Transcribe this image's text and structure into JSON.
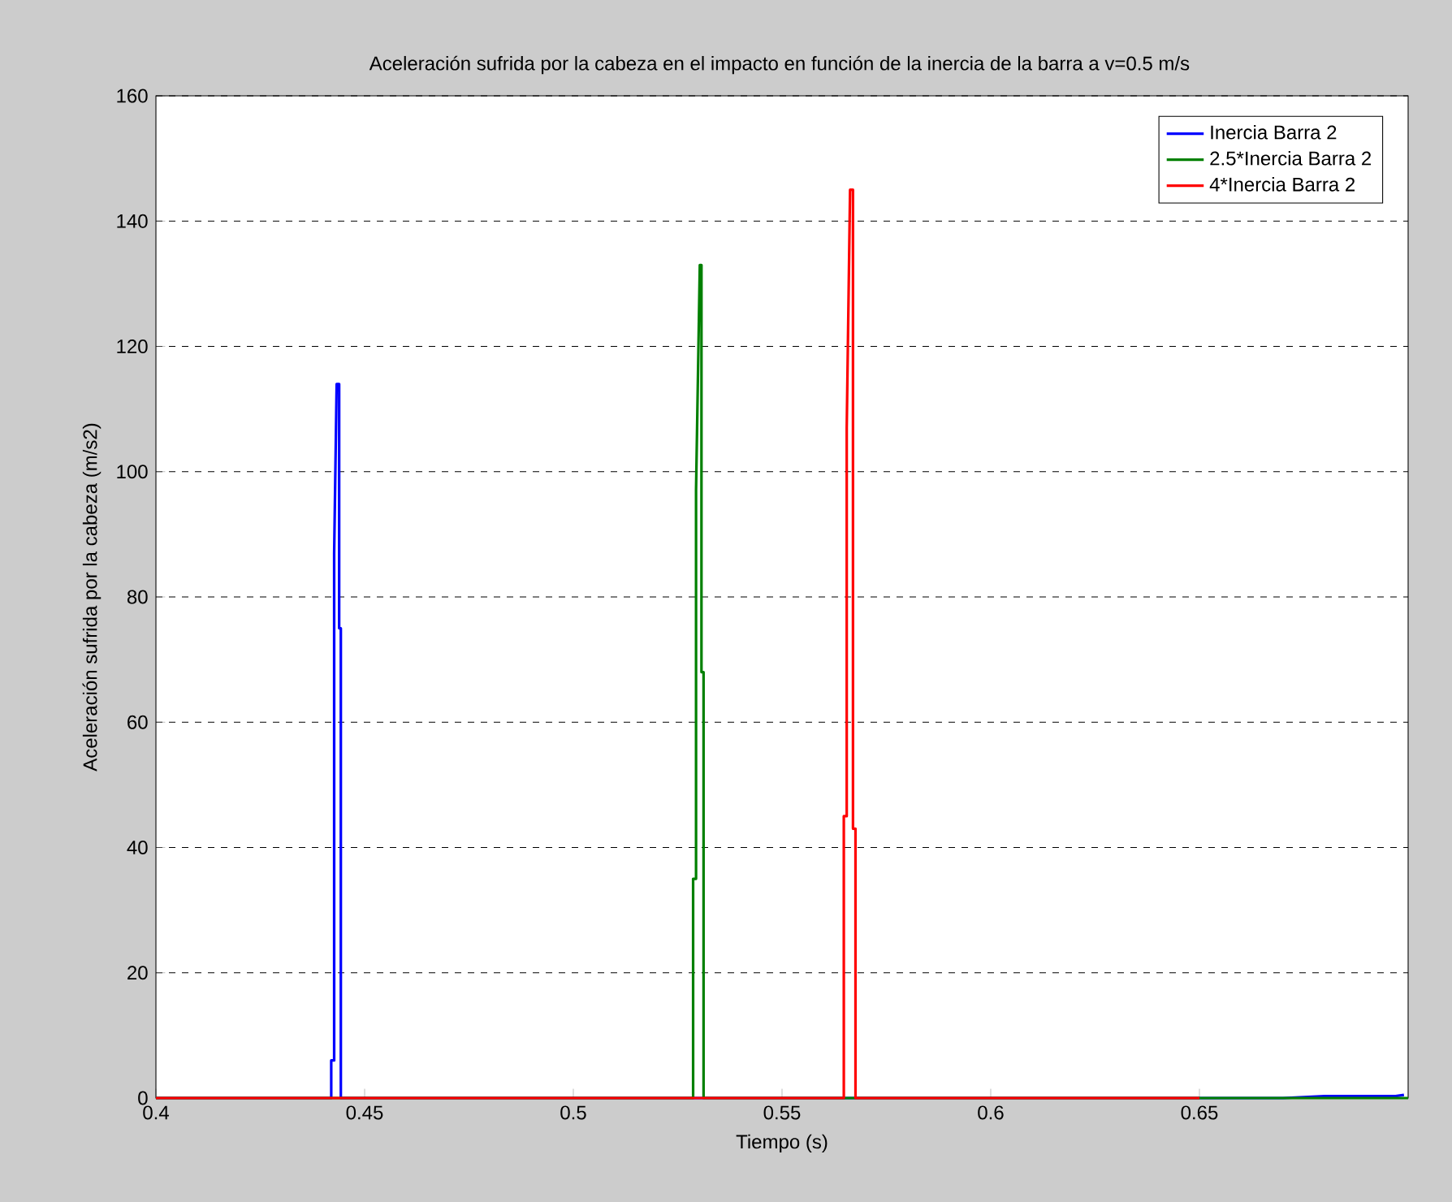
{
  "chart_data": {
    "type": "line",
    "title": "Aceleración sufrida por la cabeza en el impacto en función de la inercia de la barra a v=0.5 m/s",
    "xlabel": "Tiempo (s)",
    "ylabel": "Aceleración sufrida por la cabeza (m/s2)",
    "xlim": [
      0.4,
      0.7
    ],
    "ylim": [
      0,
      160
    ],
    "xticks": [
      0.4,
      0.45,
      0.5,
      0.55,
      0.6,
      0.65
    ],
    "yticks": [
      0,
      20,
      40,
      60,
      80,
      100,
      120,
      140,
      160
    ],
    "grid": "y",
    "legend": "top right",
    "line_style": "solid",
    "series": [
      {
        "name": "Inercia Barra 2",
        "color": "#0000ff",
        "x": [
          0.4,
          0.442,
          0.442,
          0.4427,
          0.4427,
          0.4433,
          0.4439,
          0.4439,
          0.4443,
          0.4443,
          0.67,
          0.68,
          0.697,
          0.699
        ],
        "values": [
          0,
          0,
          6,
          6,
          87,
          114,
          114,
          75,
          75,
          0,
          0,
          0.3,
          0.3,
          0.5
        ]
      },
      {
        "name": "2.5*Inercia Barra 2",
        "color": "#008000",
        "x": [
          0.4,
          0.5287,
          0.5287,
          0.5294,
          0.5294,
          0.5303,
          0.5307,
          0.5307,
          0.5312,
          0.5312,
          0.7
        ],
        "values": [
          0,
          0,
          35,
          35,
          97,
          133,
          133,
          68,
          68,
          0,
          0
        ]
      },
      {
        "name": "4*Inercia Barra 2",
        "color": "#ff0000",
        "x": [
          0.4,
          0.5648,
          0.5648,
          0.5655,
          0.5655,
          0.5663,
          0.567,
          0.567,
          0.5676,
          0.5676,
          0.65
        ],
        "values": [
          0,
          0,
          45,
          45,
          107,
          145,
          145,
          43,
          43,
          0,
          0
        ]
      }
    ]
  }
}
